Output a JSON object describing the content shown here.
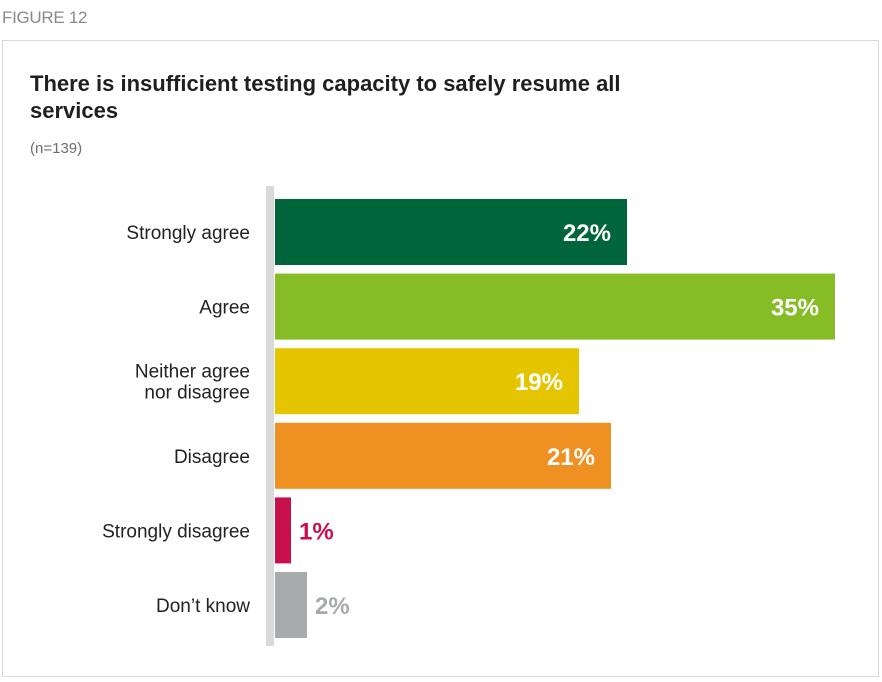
{
  "figure_label": "FIGURE 12",
  "chart_data": {
    "type": "bar",
    "orientation": "horizontal",
    "title": "There is insufficient testing capacity to safely resume all services",
    "subtitle": "(n=139)",
    "unit": "%",
    "categories": [
      [
        "Strongly agree"
      ],
      [
        "Agree"
      ],
      [
        "Neither agree",
        "nor disagree"
      ],
      [
        "Disagree"
      ],
      [
        "Strongly disagree"
      ],
      [
        "Don’t know"
      ]
    ],
    "values": [
      22,
      35,
      19,
      21,
      1,
      2
    ],
    "colors": [
      "#00653a",
      "#86bc25",
      "#e5c400",
      "#ef9022",
      "#c8104c",
      "#a8abac"
    ],
    "label_colors": [
      "#ffffff",
      "#ffffff",
      "#ffffff",
      "#ffffff",
      "#c8104c",
      "#a8abac"
    ],
    "label_position": [
      "inside",
      "inside",
      "inside",
      "inside",
      "outside",
      "outside"
    ],
    "xlim": [
      0,
      35
    ],
    "axis_color": "#d9d9d9"
  }
}
